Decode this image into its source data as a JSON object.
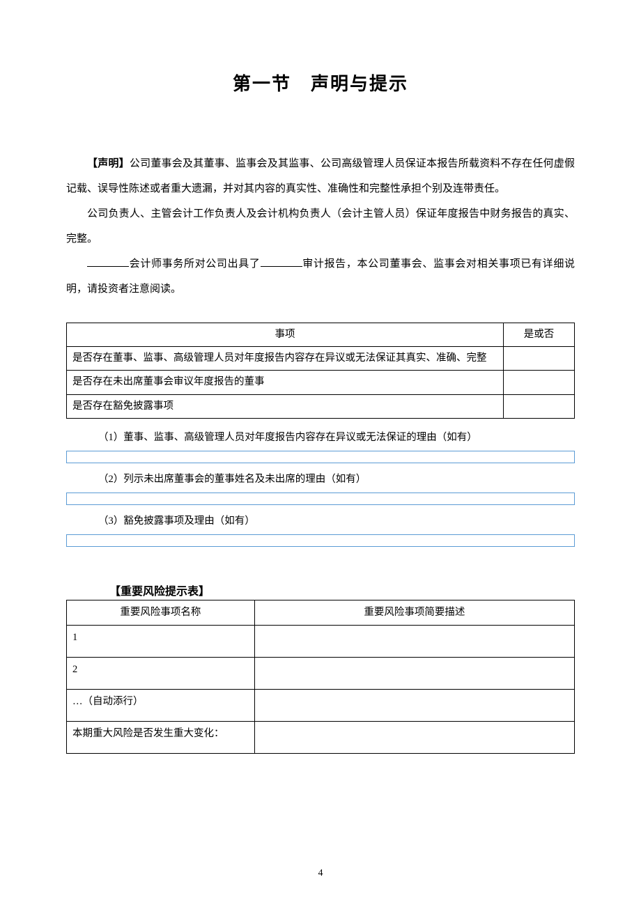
{
  "section_title": "第一节　声明与提示",
  "declaration_label": "【声明】",
  "para1": "公司董事会及其董事、监事会及其监事、公司高级管理人员保证本报告所载资料不存在任何虚假记载、误导性陈述或者重大遗漏，并对其内容的真实性、准确性和完整性承担个别及连带责任。",
  "para2": "公司负责人、主管会计工作负责人及会计机构负责人（会计主管人员）保证年度报告中财务报告的真实、完整。",
  "para3_a": "会计师事务所对公司出具了",
  "para3_b": "审计报告，本公司董事会、监事会对相关事项已有详细说明，请投资者注意阅读。",
  "table1": {
    "headers": [
      "事项",
      "是或否"
    ],
    "rows": [
      {
        "item": "是否存在董事、监事、高级管理人员对年度报告内容存在异议或无法保证其真实、准确、完整",
        "yn": ""
      },
      {
        "item": "是否存在未出席董事会审议年度报告的董事",
        "yn": ""
      },
      {
        "item": "是否存在豁免披露事项",
        "yn": ""
      }
    ]
  },
  "sub_items": [
    "（1）董事、监事、高级管理人员对年度报告内容存在异议或无法保证的理由（如有）",
    "（2）列示未出席董事会的董事姓名及未出席的理由（如有）",
    "（3）豁免披露事项及理由（如有）"
  ],
  "risk_title": "【重要风险提示表】",
  "table2": {
    "headers": [
      "重要风险事项名称",
      "重要风险事项简要描述"
    ],
    "rows": [
      {
        "name": "1",
        "desc": ""
      },
      {
        "name": "2",
        "desc": ""
      },
      {
        "name": "…（自动添行）",
        "desc": ""
      },
      {
        "name": "本期重大风险是否发生重大变化：",
        "desc": ""
      }
    ]
  },
  "page_number": "4",
  "colors": {
    "text": "#000000",
    "border": "#000000",
    "blue_border": "#5b9bd5",
    "background": "#ffffff"
  }
}
